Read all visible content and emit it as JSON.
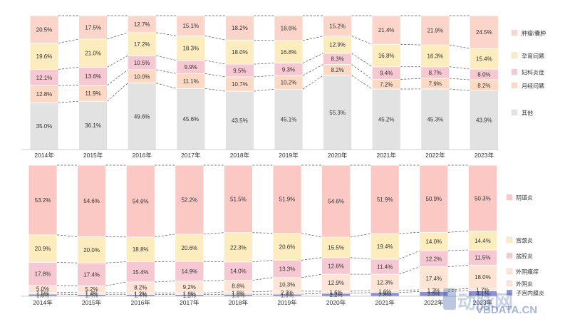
{
  "chart_data": [
    {
      "type": "bar",
      "stacked": "100%",
      "categories": [
        "2014年",
        "2015年",
        "2016年",
        "2017年",
        "2018年",
        "2019年",
        "2020年",
        "2021年",
        "2022年",
        "2023年"
      ],
      "series": [
        {
          "name": "其他",
          "color": "#e2e2e2",
          "values": [
            35.0,
            36.1,
            49.6,
            45.6,
            43.5,
            45.1,
            55.3,
            45.2,
            45.3,
            43.9
          ]
        },
        {
          "name": "月经问题",
          "color": "#fbd9c4",
          "values": [
            12.8,
            11.9,
            10.0,
            11.1,
            10.7,
            10.2,
            8.2,
            7.2,
            7.9,
            8.2
          ]
        },
        {
          "name": "妇科炎症",
          "color": "#f6c8d2",
          "values": [
            12.1,
            13.6,
            10.5,
            9.9,
            9.5,
            9.3,
            8.3,
            9.4,
            8.7,
            8.0
          ]
        },
        {
          "name": "孕育问题",
          "color": "#fcecbe",
          "values": [
            19.6,
            21.0,
            17.2,
            18.3,
            18.0,
            16.8,
            12.9,
            16.8,
            16.3,
            15.4
          ]
        },
        {
          "name": "肿瘤/囊肿",
          "color": "#fbd5c9",
          "values": [
            20.5,
            17.5,
            12.7,
            15.1,
            18.2,
            18.6,
            15.2,
            21.4,
            21.9,
            24.5
          ]
        }
      ],
      "legend": "right",
      "connector_lines": "dashed"
    },
    {
      "type": "bar",
      "stacked": "100%",
      "categories": [
        "2014年",
        "2015年",
        "2016年",
        "2017年",
        "2018年",
        "2019年",
        "2020年",
        "2021年",
        "2022年",
        "2023年"
      ],
      "series": [
        {
          "name": "子宫内膜炎",
          "color": "#8b90d6",
          "values": [
            1.6,
            1.4,
            1.4,
            1.3,
            1.5,
            1.6,
            2.2,
            2.8,
            3.6,
            4.1
          ]
        },
        {
          "name": "外阴炎",
          "color": "#fde4d4",
          "values": [
            1.5,
            1.4,
            1.2,
            1.0,
            1.9,
            2.3,
            1.6,
            1.6,
            1.3,
            1.7
          ]
        },
        {
          "name": "外阴瘙痒",
          "color": "#fde4d4",
          "values": [
            5.0,
            5.2,
            8.2,
            9.2,
            8.8,
            10.3,
            12.9,
            12.3,
            17.4,
            18.0
          ]
        },
        {
          "name": "盆腔炎",
          "color": "#f6c8d2",
          "values": [
            17.8,
            17.4,
            15.4,
            14.9,
            14.0,
            13.3,
            12.6,
            11.4,
            12.2,
            11.5
          ]
        },
        {
          "name": "宫颈炎",
          "color": "#fcecbe",
          "values": [
            20.9,
            20.0,
            18.8,
            20.6,
            22.3,
            20.6,
            15.5,
            19.4,
            14.0,
            14.4
          ]
        },
        {
          "name": "阴道炎",
          "color": "#fbc8c4",
          "values": [
            53.2,
            54.6,
            54.6,
            52.2,
            51.5,
            51.9,
            54.6,
            51.9,
            50.9,
            50.3
          ]
        }
      ],
      "legend": "right",
      "connector_lines": "dashed"
    }
  ],
  "watermark": {
    "logo_text": "动脉网",
    "url": "VBDATA.CN"
  }
}
